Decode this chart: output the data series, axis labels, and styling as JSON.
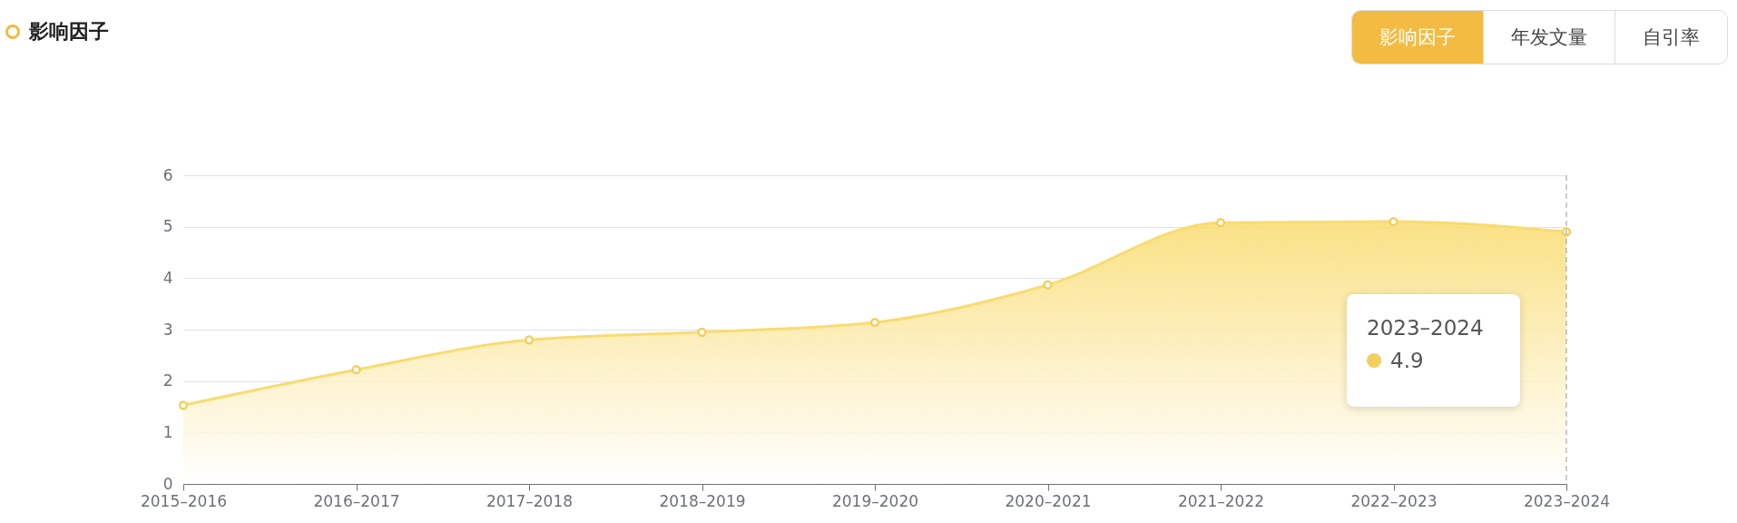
{
  "chart_data": {
    "type": "area",
    "title": "影响因子",
    "categories": [
      "2015–2016",
      "2016–2017",
      "2017–2018",
      "2018–2019",
      "2019–2020",
      "2020–2021",
      "2021–2022",
      "2022–2023",
      "2023–2024"
    ],
    "series": [
      {
        "color": "#f9dc70",
        "values": [
          1.53,
          2.22,
          2.8,
          2.95,
          3.14,
          3.87,
          5.08,
          5.1,
          4.9
        ]
      }
    ],
    "ylim": [
      0,
      6
    ],
    "yticks": [
      0,
      1,
      2,
      3,
      4,
      5,
      6
    ],
    "grid": "y",
    "marker": "circle",
    "line_style": "solid",
    "ref_lines": [
      {
        "axis": "x",
        "value": "2023–2024",
        "color": "#aaaaaa",
        "line_style": "dashed"
      }
    ],
    "annotations": [
      "影响因子",
      "年发文量",
      "自引率",
      "2023–2024",
      "4.9"
    ]
  }
}
